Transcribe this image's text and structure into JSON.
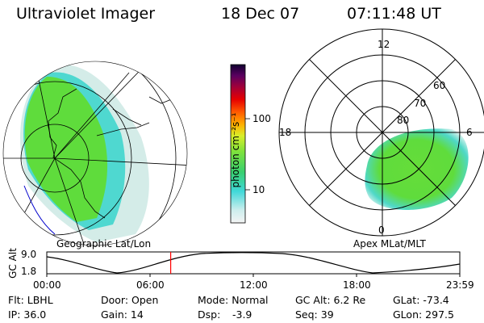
{
  "header": {
    "instrument": "Ultraviolet Imager",
    "date": "18 Dec 07",
    "time": "07:11:48 UT"
  },
  "colorbar": {
    "unit_label": "photon cm⁻²s⁻¹",
    "ticks": [
      "100",
      "10"
    ]
  },
  "left_map": {
    "label": "Geographic Lat/Lon"
  },
  "right_map": {
    "label": "Apex MLat/MLT",
    "mlt_labels": {
      "top": "12",
      "left": "18",
      "right": "6",
      "bottom": "0"
    },
    "lat_labels": [
      "60",
      "70",
      "80"
    ]
  },
  "timeline": {
    "ylabel": "GC Alt",
    "ymax": "9.0",
    "ymin": "1.8",
    "xticks": [
      "00:00",
      "06:00",
      "12:00",
      "18:00",
      "23:59"
    ],
    "current_time_hours": 7.2
  },
  "status": {
    "flt": "Flt: LBHL",
    "ip": "IP: 36.0",
    "door": "Door: Open",
    "gain": "Gain: 14",
    "mode": "Mode: Normal",
    "dsp_label": "Dsp:",
    "dsp_value": "-3.9",
    "gcalt": "GC Alt: 6.2 Re",
    "seq": "Seq: 39",
    "glat": "GLat: -73.4",
    "glon": "GLon: 297.5"
  },
  "colors": {
    "aurora_main": "#5fdc3c",
    "aurora_edge": "#4fd8d0",
    "aurora_faint": "#cfeeea",
    "marker": "#ff0000"
  }
}
